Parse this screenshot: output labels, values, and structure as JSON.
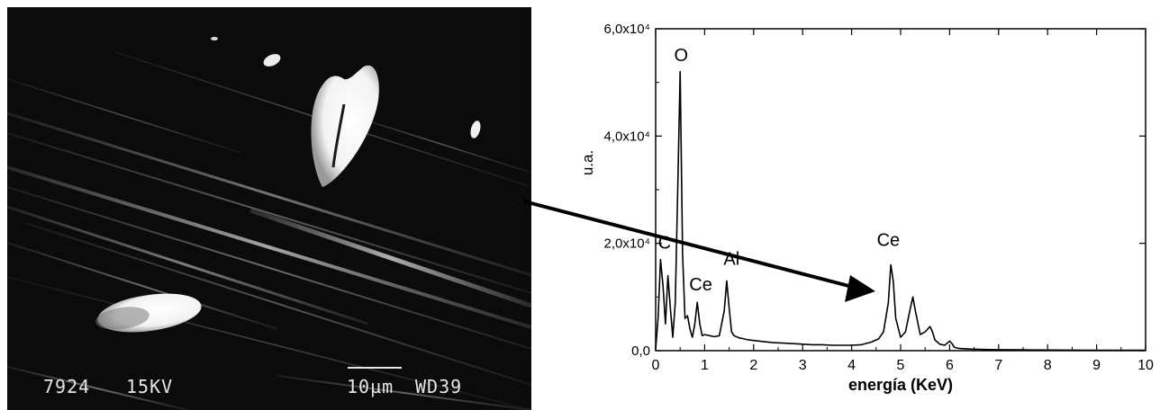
{
  "micrograph": {
    "micrograph_no": "7924",
    "voltage": "15KV",
    "scale_bar": "10µm",
    "working_distance": "WD39"
  },
  "chart_data": {
    "type": "line",
    "xlabel": "energía (KeV)",
    "ylabel": "u.a.",
    "xlim": [
      0,
      10
    ],
    "ylim": [
      0,
      60000
    ],
    "x_ticks": [
      0,
      1,
      2,
      3,
      4,
      5,
      6,
      7,
      8,
      9,
      10
    ],
    "x_tick_labels": [
      "0",
      "1",
      "2",
      "3",
      "4",
      "5",
      "6",
      "7",
      "8",
      "9",
      "10"
    ],
    "y_ticks": [
      0,
      20000,
      40000,
      60000
    ],
    "y_tick_labels": [
      "0,0",
      "2,0x10⁴",
      "4,0x10⁴",
      "6,0x10⁴"
    ],
    "series": [
      {
        "x": [
          0.0,
          0.05,
          0.1,
          0.15,
          0.2,
          0.25,
          0.3,
          0.35,
          0.4,
          0.45,
          0.5,
          0.55,
          0.6,
          0.65,
          0.7,
          0.75,
          0.8,
          0.85,
          0.9,
          0.95,
          1.0,
          1.1,
          1.2,
          1.3,
          1.4,
          1.45,
          1.5,
          1.55,
          1.6,
          1.7,
          1.8,
          1.9,
          2.0,
          2.2,
          2.4,
          2.6,
          2.8,
          3.0,
          3.2,
          3.4,
          3.6,
          3.8,
          4.0,
          4.2,
          4.4,
          4.55,
          4.65,
          4.75,
          4.8,
          4.85,
          4.9,
          5.0,
          5.1,
          5.2,
          5.25,
          5.3,
          5.4,
          5.5,
          5.6,
          5.65,
          5.7,
          5.8,
          5.9,
          6.0,
          6.05,
          6.1,
          6.2,
          6.4,
          6.6,
          6.8,
          7.0,
          7.5,
          8.0,
          8.5,
          9.0,
          9.5,
          10.0
        ],
        "y": [
          300,
          6000,
          17000,
          12000,
          5000,
          14000,
          8000,
          2500,
          9000,
          30000,
          52000,
          18000,
          6000,
          6500,
          4000,
          2500,
          5000,
          9000,
          5000,
          2800,
          3000,
          2800,
          2600,
          2800,
          7500,
          13000,
          8000,
          3500,
          2800,
          2400,
          2200,
          2000,
          1900,
          1700,
          1500,
          1400,
          1300,
          1200,
          1100,
          1100,
          1000,
          1000,
          1000,
          1100,
          1600,
          2200,
          3500,
          9000,
          16000,
          13000,
          6000,
          2500,
          3500,
          8000,
          10000,
          7500,
          3000,
          3500,
          4500,
          3500,
          2000,
          1200,
          1000,
          1800,
          1300,
          600,
          400,
          300,
          250,
          200,
          180,
          150,
          120,
          100,
          90,
          80,
          80
        ]
      }
    ],
    "annotations": [
      {
        "text": "O",
        "x": 0.52,
        "y": 54000
      },
      {
        "text": "C",
        "x": 0.18,
        "y": 19000
      },
      {
        "text": "Ce",
        "x": 0.92,
        "y": 11200
      },
      {
        "text": "Al",
        "x": 1.55,
        "y": 16000
      },
      {
        "text": "Ce",
        "x": 4.75,
        "y": 19500
      }
    ],
    "grid": false
  },
  "colors": {
    "line": "#000000",
    "background": "#ffffff",
    "micrograph": "#0b0b0b"
  }
}
